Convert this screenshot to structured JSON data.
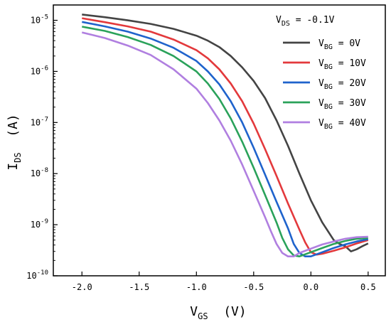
{
  "chart_data": {
    "type": "line",
    "xlabel": {
      "main": "V",
      "sub": "GS",
      "rest": "  (V)"
    },
    "ylabel": {
      "main": "I",
      "sub": "DS",
      "rest": "  (A)"
    },
    "xlim": [
      -2.25,
      0.65
    ],
    "ylim_log10": [
      -10,
      -4.7
    ],
    "yscale": "log",
    "x_ticks": [
      -2.0,
      -1.5,
      -1.0,
      -0.5,
      0.0,
      0.5
    ],
    "x_tick_labels": [
      "-2.0",
      "-1.5",
      "-1.0",
      "-0.5",
      "0.0",
      "0.5"
    ],
    "y_tick_exponents": [
      -5,
      -6,
      -7,
      -8,
      -9,
      -10
    ],
    "y_tick_base": "10",
    "legend_title": {
      "main": "V",
      "sub": "DS",
      "rest": " = -0.1V"
    },
    "series": [
      {
        "label_main": "V",
        "label_sub": "BG",
        "label_rest": " =  0V",
        "color": "#444444",
        "x": [
          -2.0,
          -1.8,
          -1.6,
          -1.4,
          -1.2,
          -1.0,
          -0.9,
          -0.8,
          -0.7,
          -0.6,
          -0.5,
          -0.4,
          -0.3,
          -0.2,
          -0.1,
          0.0,
          0.1,
          0.2,
          0.25,
          0.3,
          0.35,
          0.4,
          0.45,
          0.5
        ],
        "y": [
          1.3e-05,
          1.15e-05,
          1e-05,
          8.5e-06,
          6.8e-06,
          5e-06,
          4e-06,
          3e-06,
          2e-06,
          1.2e-06,
          6.5e-07,
          3e-07,
          1.1e-07,
          3.5e-08,
          1e-08,
          3e-09,
          1.1e-09,
          5e-10,
          4.2e-10,
          3.8e-10,
          3e-10,
          3.3e-10,
          3.8e-10,
          4.3e-10
        ]
      },
      {
        "label_main": "V",
        "label_sub": "BG",
        "label_rest": " = 10V",
        "color": "#e3393c",
        "x": [
          -2.0,
          -1.8,
          -1.6,
          -1.4,
          -1.2,
          -1.0,
          -0.9,
          -0.8,
          -0.7,
          -0.6,
          -0.5,
          -0.4,
          -0.3,
          -0.2,
          -0.1,
          -0.05,
          0.0,
          0.05,
          0.1,
          0.2,
          0.3,
          0.4,
          0.5
        ],
        "y": [
          1.1e-05,
          9.2e-06,
          7.6e-06,
          6e-06,
          4.2e-06,
          2.6e-06,
          1.8e-06,
          1.1e-06,
          5.8e-07,
          2.6e-07,
          9.5e-08,
          3e-08,
          9e-09,
          2.6e-09,
          8e-10,
          4.5e-10,
          2.9e-10,
          2.6e-10,
          2.7e-10,
          3.1e-10,
          3.6e-10,
          4.3e-10,
          5e-10
        ]
      },
      {
        "label_main": "V",
        "label_sub": "BG",
        "label_rest": " = 20V",
        "color": "#1f63cc",
        "x": [
          -2.0,
          -1.8,
          -1.6,
          -1.4,
          -1.2,
          -1.0,
          -0.9,
          -0.8,
          -0.7,
          -0.6,
          -0.5,
          -0.4,
          -0.3,
          -0.2,
          -0.15,
          -0.1,
          -0.05,
          0.0,
          0.1,
          0.2,
          0.3,
          0.4,
          0.5
        ],
        "y": [
          9.3e-06,
          7.6e-06,
          6e-06,
          4.4e-06,
          2.9e-06,
          1.6e-06,
          1e-06,
          5.6e-07,
          2.6e-07,
          1e-07,
          3.2e-08,
          9.5e-09,
          2.8e-09,
          8.5e-10,
          4.2e-10,
          2.8e-10,
          2.4e-10,
          2.4e-10,
          2.9e-10,
          3.5e-10,
          4.1e-10,
          4.7e-10,
          5.2e-10
        ]
      },
      {
        "label_main": "V",
        "label_sub": "BG",
        "label_rest": " = 30V",
        "color": "#2aa25a",
        "x": [
          -2.0,
          -1.8,
          -1.6,
          -1.4,
          -1.2,
          -1.0,
          -0.9,
          -0.8,
          -0.7,
          -0.6,
          -0.5,
          -0.4,
          -0.3,
          -0.25,
          -0.2,
          -0.15,
          -0.1,
          0.0,
          0.1,
          0.2,
          0.3,
          0.4,
          0.5
        ],
        "y": [
          7.5e-06,
          6.2e-06,
          4.7e-06,
          3.3e-06,
          2e-06,
          1e-06,
          5.8e-07,
          2.9e-07,
          1.2e-07,
          4.2e-08,
          1.3e-08,
          3.8e-09,
          1.1e-09,
          5.5e-10,
          3.3e-10,
          2.5e-10,
          2.4e-10,
          2.9e-10,
          3.5e-10,
          4.2e-10,
          4.8e-10,
          5.3e-10,
          5.5e-10
        ]
      },
      {
        "label_main": "V",
        "label_sub": "BG",
        "label_rest": " = 40V",
        "color": "#b07fe0",
        "x": [
          -2.0,
          -1.8,
          -1.6,
          -1.4,
          -1.2,
          -1.0,
          -0.9,
          -0.8,
          -0.7,
          -0.6,
          -0.5,
          -0.4,
          -0.35,
          -0.3,
          -0.25,
          -0.2,
          -0.15,
          -0.1,
          0.0,
          0.1,
          0.2,
          0.3,
          0.4,
          0.5
        ],
        "y": [
          5.8e-06,
          4.5e-06,
          3.2e-06,
          2.1e-06,
          1.1e-06,
          4.6e-07,
          2.4e-07,
          1.1e-07,
          4.4e-08,
          1.5e-08,
          4.6e-09,
          1.4e-09,
          7.5e-10,
          4.2e-10,
          2.8e-10,
          2.4e-10,
          2.4e-10,
          2.8e-10,
          3.4e-10,
          4.1e-10,
          4.7e-10,
          5.3e-10,
          5.7e-10,
          5.8e-10
        ]
      }
    ]
  }
}
